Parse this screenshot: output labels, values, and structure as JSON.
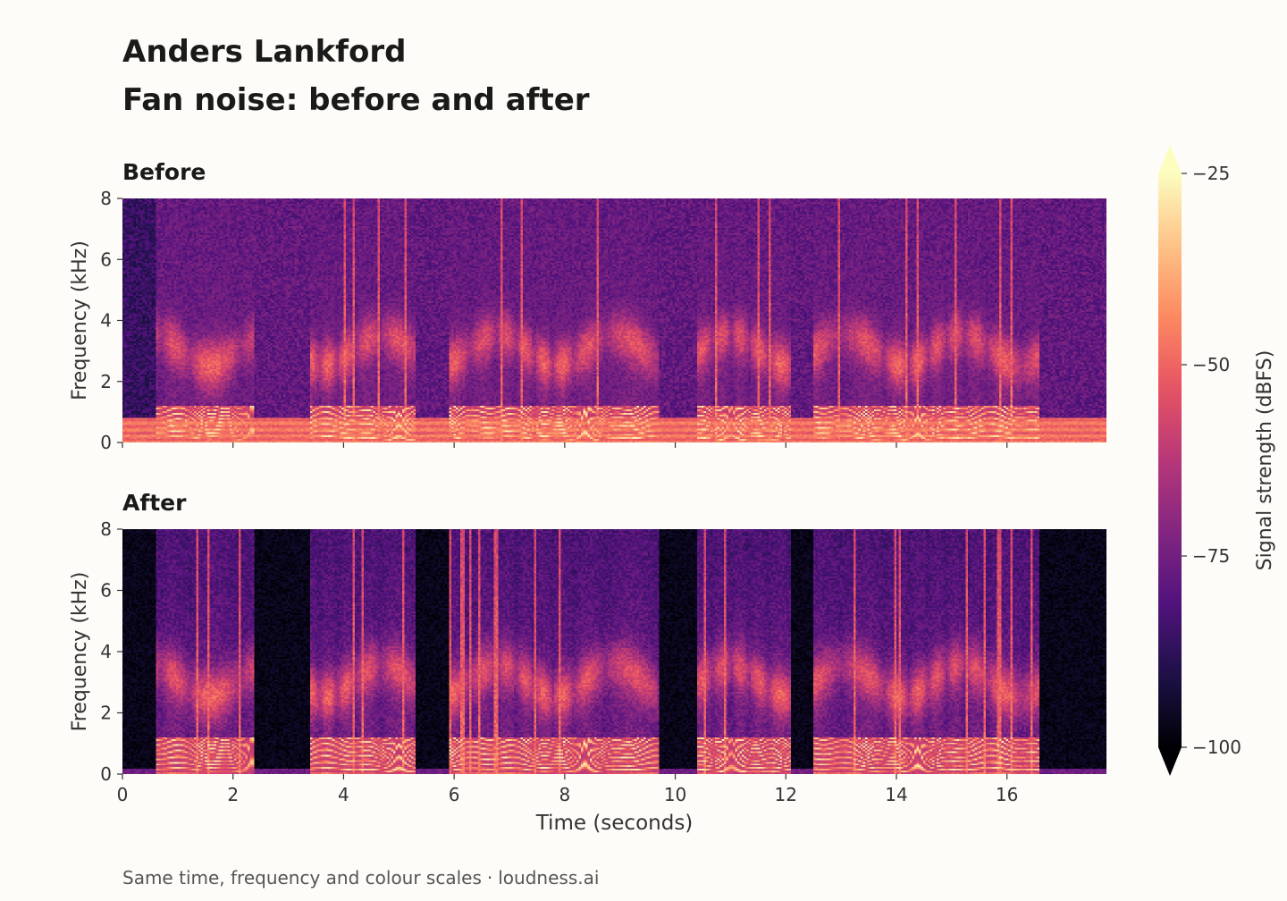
{
  "header": {
    "name": "Anders Lankford",
    "title": "Fan noise: before and after"
  },
  "footer": {
    "note": "Same time, frequency and colour scales",
    "separator": "·",
    "brand": "loudness.ai"
  },
  "colors": {
    "background": "#fdfcf8",
    "colormap": "magma",
    "colormap_stops": [
      "#000004",
      "#1d1147",
      "#51127c",
      "#822681",
      "#b73779",
      "#e75263",
      "#fc8961",
      "#fec287",
      "#fcfdbf"
    ]
  },
  "chart_data": [
    {
      "type": "heatmap",
      "panel": "before",
      "title": "Before",
      "ylabel": "Frequency (kHz)",
      "xlabel": "",
      "xlim": [
        0,
        17.8
      ],
      "ylim": [
        0,
        8
      ],
      "yticks": [
        0,
        2,
        4,
        6,
        8
      ],
      "xticks": [
        0,
        2,
        4,
        6,
        8,
        10,
        12,
        14,
        16
      ],
      "show_x_tick_labels": false,
      "noise_floor_dbfs": -78,
      "fan_noise_band_khz": [
        0,
        0.8
      ],
      "speech_segments_s": [
        [
          0.6,
          2.4
        ],
        [
          3.4,
          5.3
        ],
        [
          5.9,
          9.7
        ],
        [
          10.4,
          12.1
        ],
        [
          12.5,
          16.6
        ]
      ]
    },
    {
      "type": "heatmap",
      "panel": "after",
      "title": "After",
      "ylabel": "Frequency (kHz)",
      "xlabel": "Time (seconds)",
      "xlim": [
        0,
        17.8
      ],
      "ylim": [
        0,
        8
      ],
      "yticks": [
        0,
        2,
        4,
        6,
        8
      ],
      "xticks": [
        0,
        2,
        4,
        6,
        8,
        10,
        12,
        14,
        16
      ],
      "show_x_tick_labels": true,
      "noise_floor_dbfs": -100,
      "speech_segments_s": [
        [
          0.6,
          2.4
        ],
        [
          3.4,
          5.3
        ],
        [
          5.9,
          9.7
        ],
        [
          10.4,
          12.1
        ],
        [
          12.5,
          16.6
        ]
      ]
    }
  ],
  "colorbar": {
    "label": "Signal strength (dBFS)",
    "min": -100,
    "max": -25,
    "ticks": [
      -25,
      -50,
      -75,
      -100
    ],
    "tick_labels": [
      "−25",
      "−50",
      "−75",
      "−100"
    ],
    "extend": "both"
  }
}
